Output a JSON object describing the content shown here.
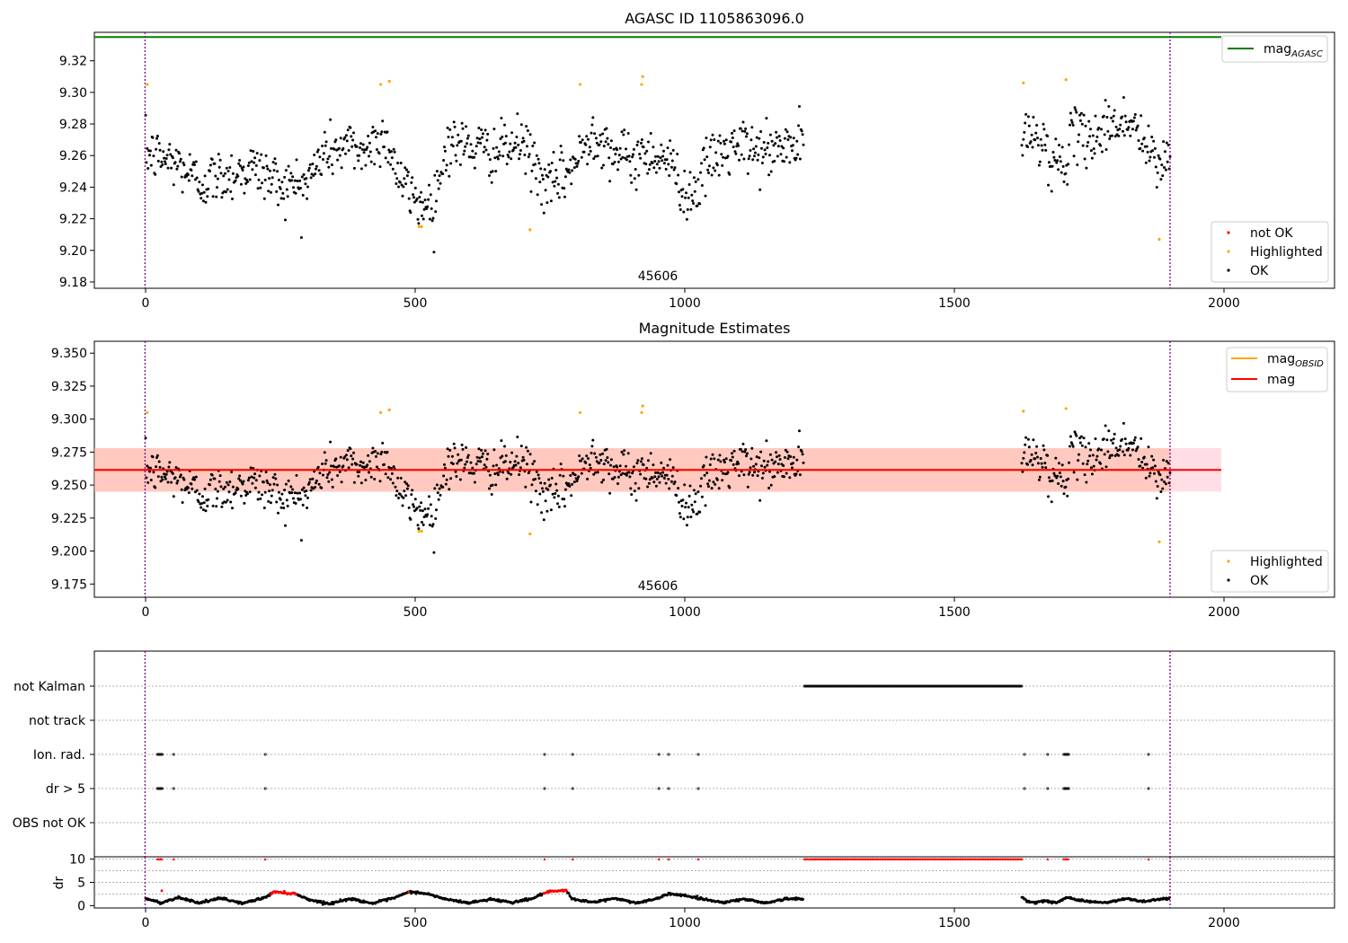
{
  "chart_data": [
    {
      "type": "scatter",
      "title": "AGASC ID 1105863096.0",
      "xlim": [
        -95,
        2205
      ],
      "ylim": [
        9.176,
        9.338
      ],
      "xticks": [
        0,
        500,
        1000,
        1500,
        2000
      ],
      "yticks": [
        9.18,
        9.2,
        9.22,
        9.24,
        9.26,
        9.28,
        9.3,
        9.32
      ],
      "ytick_labels": [
        "9.18",
        "9.20",
        "9.22",
        "9.24",
        "9.26",
        "9.28",
        "9.30",
        "9.32"
      ],
      "reference_line": {
        "name": "mag",
        "subscript": "AGASC",
        "y": 9.335,
        "x_range": [
          -95,
          1995
        ],
        "color": "#008000"
      },
      "vlines": [
        {
          "x": -1,
          "color": "#800080"
        },
        {
          "x": 1900,
          "color": "#800080"
        }
      ],
      "annotation": {
        "text": "45606",
        "x": 950,
        "y": 9.18
      },
      "segments": [
        {
          "start": 0,
          "end": 1220,
          "points": 820,
          "anchors": [
            [
              0,
              9.262
            ],
            [
              60,
              9.255
            ],
            [
              100,
              9.243
            ],
            [
              140,
              9.247
            ],
            [
              200,
              9.252
            ],
            [
              260,
              9.241
            ],
            [
              300,
              9.243
            ],
            [
              330,
              9.262
            ],
            [
              380,
              9.266
            ],
            [
              410,
              9.262
            ],
            [
              430,
              9.272
            ],
            [
              450,
              9.269
            ],
            [
              470,
              9.245
            ],
            [
              500,
              9.232
            ],
            [
              525,
              9.228
            ],
            [
              540,
              9.238
            ],
            [
              560,
              9.268
            ],
            [
              600,
              9.266
            ],
            [
              650,
              9.262
            ],
            [
              700,
              9.268
            ],
            [
              720,
              9.255
            ],
            [
              745,
              9.238
            ],
            [
              800,
              9.256
            ],
            [
              830,
              9.276
            ],
            [
              870,
              9.262
            ],
            [
              900,
              9.256
            ],
            [
              930,
              9.262
            ],
            [
              960,
              9.26
            ],
            [
              990,
              9.246
            ],
            [
              1000,
              9.235
            ],
            [
              1020,
              9.238
            ],
            [
              1050,
              9.258
            ],
            [
              1100,
              9.266
            ],
            [
              1150,
              9.262
            ],
            [
              1220,
              9.268
            ]
          ]
        },
        {
          "start": 1625,
          "end": 1900,
          "points": 180,
          "anchors": [
            [
              1625,
              9.27
            ],
            [
              1660,
              9.274
            ],
            [
              1680,
              9.255
            ],
            [
              1700,
              9.255
            ],
            [
              1720,
              9.272
            ],
            [
              1760,
              9.272
            ],
            [
              1800,
              9.282
            ],
            [
              1830,
              9.28
            ],
            [
              1860,
              9.262
            ],
            [
              1880,
              9.252
            ],
            [
              1900,
              9.265
            ]
          ]
        }
      ],
      "noise": 0.0085,
      "series": [
        {
          "name": "not OK",
          "color": "#ff0000",
          "values": []
        },
        {
          "name": "Highlighted",
          "color": "#ffa500",
          "values": [
            [
              3,
              9.305
            ],
            [
              436,
              9.305
            ],
            [
              452,
              9.307
            ],
            [
              507,
              9.215
            ],
            [
              512,
              9.215
            ],
            [
              713,
              9.213
            ],
            [
              806,
              9.305
            ],
            [
              920,
              9.305
            ],
            [
              922,
              9.31
            ],
            [
              1628,
              9.306
            ],
            [
              1707,
              9.308
            ],
            [
              1880,
              9.207
            ]
          ]
        },
        {
          "name": "OK",
          "color": "#000000"
        }
      ],
      "legend": {
        "position": "lower right",
        "labels": [
          "not OK",
          "Highlighted",
          "OK"
        ],
        "top_label": {
          "text": "mag",
          "subscript": "AGASC"
        }
      }
    },
    {
      "type": "scatter",
      "title": "Magnitude Estimates",
      "xlim": [
        -95,
        2205
      ],
      "ylim": [
        9.165,
        9.359
      ],
      "xticks": [
        0,
        500,
        1000,
        1500,
        2000
      ],
      "yticks": [
        9.175,
        9.2,
        9.225,
        9.25,
        9.275,
        9.3,
        9.325,
        9.35
      ],
      "ytick_labels": [
        "9.175",
        "9.200",
        "9.225",
        "9.250",
        "9.275",
        "9.300",
        "9.325",
        "9.350"
      ],
      "mag_line": {
        "name": "mag",
        "y": 9.2615,
        "color": "#ff0000"
      },
      "mag_obsid": {
        "name": "mag",
        "subscript": "OBSID",
        "color": "#ffa500",
        "y": 9.2615,
        "band": [
          9.245,
          9.278
        ]
      },
      "band": {
        "x_range": [
          -95,
          1995
        ],
        "y_range": [
          9.245,
          9.278
        ],
        "color": "#ffc0cb"
      },
      "obsid_band": {
        "x_range": [
          -95,
          1900
        ],
        "y_range": [
          9.245,
          9.278
        ],
        "color": "#ffa07a"
      },
      "vlines": [
        {
          "x": -1,
          "color": "#800080"
        },
        {
          "x": 1900,
          "color": "#800080"
        }
      ],
      "annotation": {
        "text": "45606",
        "x": 950,
        "y": 9.17
      },
      "series": [
        {
          "name": "Highlighted",
          "color": "#ffa500"
        },
        {
          "name": "OK",
          "color": "#000000"
        }
      ],
      "legend": {
        "position": "lower right",
        "labels": [
          "Highlighted",
          "OK"
        ],
        "top_labels": [
          {
            "text": "mag",
            "subscript": "OBSID"
          },
          {
            "text": "mag"
          }
        ]
      }
    },
    {
      "type": "scatter",
      "xlim": [
        -95,
        2205
      ],
      "categories": [
        "not Kalman",
        "not track",
        "Ion. rad.",
        "dr > 5",
        "OBS not OK"
      ],
      "vlines": [
        {
          "x": -1,
          "color": "#800080"
        },
        {
          "x": 1900,
          "color": "#800080"
        }
      ],
      "series": [
        {
          "name": "not Kalman",
          "ranges": [
            [
              1222,
              1625
            ]
          ],
          "points": []
        },
        {
          "name": "not track",
          "ranges": [],
          "points": []
        },
        {
          "name": "Ion. rad.",
          "ranges": [
            [
              22,
              32
            ],
            [
              1703,
              1712
            ]
          ],
          "points": [
            52,
            222,
            740,
            792,
            952,
            970,
            1025,
            1630,
            1673,
            1860
          ]
        },
        {
          "name": "dr > 5",
          "ranges": [
            [
              22,
              32
            ],
            [
              1703,
              1712
            ]
          ],
          "points": [
            52,
            222,
            740,
            792,
            952,
            970,
            1025,
            1630,
            1673,
            1860
          ]
        },
        {
          "name": "OBS not OK",
          "ranges": [],
          "points": []
        }
      ]
    },
    {
      "type": "scatter",
      "xlim": [
        -95,
        2205
      ],
      "ylim": [
        -0.5,
        10.5
      ],
      "ylabel": "dr",
      "yticks": [
        0,
        5,
        10
      ],
      "ytick_labels": [
        "0",
        "5",
        "10"
      ],
      "gridlines": [
        2.5,
        5,
        7.5,
        10
      ],
      "vlines": [
        {
          "x": -1,
          "color": "#800080"
        },
        {
          "x": 1900,
          "color": "#800080"
        }
      ],
      "dr_curve": {
        "segments": [
          [
            0,
            1220
          ],
          [
            1625,
            1900
          ]
        ],
        "anchors": [
          [
            0,
            1.5
          ],
          [
            30,
            0.6
          ],
          [
            60,
            1.8
          ],
          [
            100,
            0.6
          ],
          [
            140,
            1.6
          ],
          [
            180,
            0.5
          ],
          [
            220,
            1.7
          ],
          [
            240,
            3.0
          ],
          [
            280,
            2.5
          ],
          [
            300,
            1.4
          ],
          [
            340,
            0.4
          ],
          [
            380,
            1.5
          ],
          [
            420,
            0.5
          ],
          [
            460,
            1.6
          ],
          [
            490,
            3.0
          ],
          [
            520,
            2.6
          ],
          [
            560,
            1.3
          ],
          [
            600,
            0.6
          ],
          [
            640,
            1.4
          ],
          [
            680,
            0.7
          ],
          [
            720,
            1.6
          ],
          [
            740,
            2.8
          ],
          [
            780,
            3.3
          ],
          [
            790,
            1.5
          ],
          [
            830,
            0.7
          ],
          [
            870,
            1.6
          ],
          [
            910,
            0.6
          ],
          [
            950,
            1.5
          ],
          [
            970,
            2.6
          ],
          [
            1000,
            2.2
          ],
          [
            1030,
            1.5
          ],
          [
            1070,
            0.7
          ],
          [
            1110,
            1.4
          ],
          [
            1150,
            0.6
          ],
          [
            1190,
            1.5
          ],
          [
            1220,
            1.4
          ],
          [
            1625,
            1.8
          ],
          [
            1640,
            0.7
          ],
          [
            1670,
            1.0
          ],
          [
            1690,
            0.6
          ],
          [
            1710,
            1.8
          ],
          [
            1740,
            1.0
          ],
          [
            1780,
            0.6
          ],
          [
            1820,
            1.5
          ],
          [
            1850,
            0.9
          ],
          [
            1880,
            1.4
          ],
          [
            1900,
            1.6
          ]
        ],
        "red_ranges": [
          [
            232,
            282
          ],
          [
            738,
            782
          ]
        ],
        "red_points": [
          [
            30,
            3.2
          ],
          [
            488,
            3.0
          ]
        ]
      },
      "ten_markers": {
        "ranges": [
          [
            22,
            32
          ],
          [
            1222,
            1625
          ],
          [
            1703,
            1712
          ]
        ],
        "points": [
          52,
          222,
          740,
          792,
          952,
          970,
          1025,
          1673,
          1860
        ],
        "y": 10
      }
    }
  ],
  "colors": {
    "axis": "#000000",
    "grid": "#b0b0b0",
    "ok": "#000000",
    "highlighted": "#ffa500",
    "not_ok": "#ff0000",
    "agasc_line": "#008000",
    "mag_line": "#ff0000",
    "obsid_line": "#ffa500"
  }
}
